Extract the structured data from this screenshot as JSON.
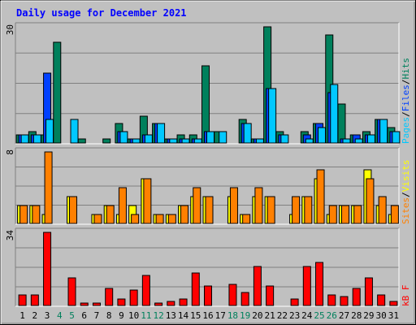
{
  "chart_data": {
    "title": "Daily usage for December 2021",
    "days": [
      "1",
      "2",
      "3",
      "4",
      "5",
      "6",
      "7",
      "8",
      "9",
      "10",
      "11",
      "12",
      "13",
      "14",
      "15",
      "16",
      "17",
      "18",
      "19",
      "20",
      "21",
      "22",
      "23",
      "24",
      "25",
      "26",
      "27",
      "28",
      "29",
      "30",
      "31"
    ],
    "weekend_days": [
      "4",
      "5",
      "11",
      "12",
      "18",
      "19",
      "25",
      "26"
    ],
    "panels": [
      {
        "type": "bar",
        "max_label": "30",
        "ylim": [
          0,
          30
        ],
        "series": [
          {
            "name": "Hits",
            "color": "#00805c",
            "values": [
              2,
              3,
              2,
              26,
              0,
              1,
              0,
              1,
              5,
              1,
              7,
              5,
              1,
              2,
              2,
              20,
              3,
              0,
              6,
              1,
              30,
              3,
              0,
              3,
              5,
              28,
              10,
              2,
              3,
              6,
              4
            ]
          },
          {
            "name": "Files",
            "color": "#0040ff",
            "values": [
              2,
              2,
              18,
              0,
              0,
              0,
              0,
              0,
              3,
              1,
              2,
              5,
              1,
              1,
              1,
              3,
              0,
              0,
              5,
              1,
              14,
              2,
              0,
              2,
              5,
              13,
              1,
              2,
              2,
              6,
              3
            ]
          },
          {
            "name": "Pages",
            "color": "#00c8ff",
            "values": [
              2,
              2,
              6,
              0,
              6,
              0,
              0,
              0,
              3,
              1,
              2,
              5,
              1,
              1,
              1,
              3,
              3,
              0,
              5,
              1,
              14,
              2,
              0,
              1,
              4,
              15,
              1,
              1,
              2,
              6,
              3
            ]
          }
        ]
      },
      {
        "type": "bar",
        "max_label": "8",
        "ylim": [
          0,
          8
        ],
        "series": [
          {
            "name": "Visits",
            "color": "#ffff00",
            "values": [
              2,
              2,
              1,
              0,
              3,
              0,
              1,
              2,
              1,
              2,
              5,
              1,
              1,
              2,
              3,
              3,
              0,
              3,
              1,
              3,
              3,
              0,
              1,
              3,
              5,
              1,
              2,
              2,
              6,
              2,
              1
            ]
          },
          {
            "name": "Sites",
            "color": "#ff8000",
            "values": [
              2,
              2,
              8,
              0,
              3,
              0,
              1,
              2,
              4,
              1,
              5,
              1,
              1,
              2,
              4,
              3,
              0,
              4,
              1,
              4,
              3,
              0,
              3,
              3,
              6,
              2,
              2,
              2,
              5,
              3,
              2
            ]
          }
        ]
      },
      {
        "type": "bar",
        "max_label": "34",
        "ylim": [
          0,
          34
        ],
        "series": [
          {
            "name": "kB F",
            "color": "#ff0000",
            "values": [
              5,
              5,
              34,
              0,
              13,
              1,
              1,
              8,
              3,
              7,
              14,
              1,
              2,
              3,
              15,
              9,
              0,
              10,
              6,
              18,
              9,
              0,
              3,
              18,
              20,
              5,
              4,
              8,
              13,
              5,
              2
            ]
          }
        ]
      }
    ]
  }
}
